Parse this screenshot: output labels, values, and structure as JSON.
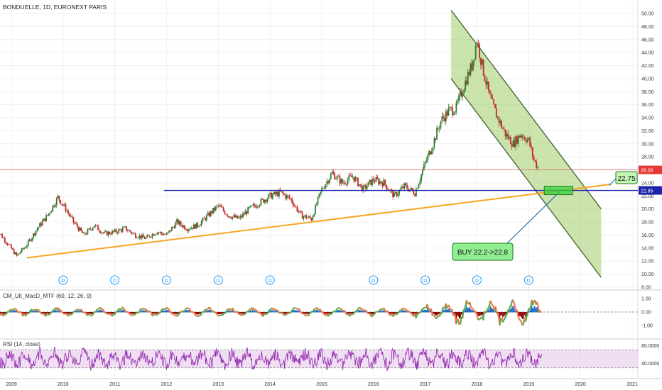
{
  "header": {
    "title": "BONDUELLE, 1D, EURONEXT PARIS"
  },
  "colors": {
    "candle_up": "#2e7d32",
    "candle_down": "#c62828",
    "support_line": "#f5a623",
    "horizontal_line": "#1e22aa",
    "price_line": "#e57373",
    "channel_fill": "#8bc34a",
    "channel_border": "#4a6b3a",
    "macd_up": "#4caf50",
    "macd_down": "#ff7043",
    "rsi_line": "#8e24aa",
    "rsi_band": "#e1bee7"
  },
  "chart_data": [
    {
      "type": "line",
      "title": "BONDUELLE, 1D, EURONEXT PARIS",
      "xlabel": "",
      "ylabel": "",
      "x_ticks": [
        "2009",
        "2010",
        "2011",
        "2012",
        "2013",
        "2014",
        "2015",
        "2016",
        "2017",
        "2018",
        "2019",
        "2020",
        "2021"
      ],
      "y_ticks": [
        "50.00",
        "48.00",
        "46.00",
        "44.00",
        "42.00",
        "40.00",
        "38.00",
        "36.00",
        "34.00",
        "32.00",
        "30.00",
        "28.00",
        "26.00",
        "24.00",
        "22.00",
        "20.00",
        "18.00",
        "16.00",
        "14.00",
        "12.00",
        "10.00",
        "8.00"
      ],
      "ylim": [
        8,
        51
      ],
      "series": [
        {
          "x": [
            2008.7,
            2008.9,
            2009.1,
            2009.3,
            2009.5,
            2009.7,
            2009.9,
            2010.05,
            2010.2,
            2010.4,
            2010.6,
            2010.8,
            2011.0,
            2011.2,
            2011.4,
            2011.6,
            2011.8,
            2012.0,
            2012.2,
            2012.4,
            2012.6,
            2012.8,
            2013.0,
            2013.2,
            2013.4,
            2013.6,
            2013.8,
            2014.0,
            2014.2,
            2014.4,
            2014.6,
            2014.8,
            2015.0,
            2015.2,
            2015.4,
            2015.6,
            2015.8,
            2016.0,
            2016.2,
            2016.4,
            2016.6,
            2016.8,
            2017.0,
            2017.15,
            2017.3,
            2017.45,
            2017.6,
            2017.75,
            2017.9,
            2018.0,
            2018.1,
            2018.25,
            2018.4,
            2018.55,
            2018.7,
            2018.85,
            2019.0,
            2019.1,
            2019.2
          ],
          "values": [
            17.0,
            15.0,
            12.8,
            14.5,
            17.0,
            19.0,
            21.8,
            20.0,
            18.0,
            16.0,
            17.5,
            16.2,
            16.5,
            17.0,
            16.0,
            15.5,
            16.5,
            16.0,
            18.0,
            17.0,
            17.5,
            19.0,
            20.5,
            19.0,
            18.5,
            20.0,
            21.0,
            22.0,
            22.5,
            21.5,
            19.0,
            18.5,
            23.0,
            25.5,
            24.0,
            25.0,
            23.0,
            24.5,
            24.0,
            22.0,
            23.5,
            22.5,
            27.0,
            30.0,
            33.5,
            35.0,
            35.5,
            39.0,
            42.0,
            46.0,
            42.0,
            37.0,
            34.0,
            31.5,
            30.0,
            31.5,
            30.5,
            27.5,
            26.0
          ]
        }
      ],
      "annotations": {
        "last_price": "26.00",
        "horizontal_level": "22.85",
        "target_label": "22.75",
        "buy_label": "BUY 22.2->22.8",
        "dividend_marker": "D",
        "dividend_x": [
          2010.0,
          2011.0,
          2012.0,
          2013.0,
          2014.0,
          2016.0,
          2017.0,
          2018.0,
          2019.0
        ]
      },
      "drawings": {
        "support_line": [
          [
            2009.3,
            12.5
          ],
          [
            2020.6,
            23.8
          ]
        ],
        "horizontal_level_start_x": 2011.95,
        "channel_upper": [
          [
            2017.5,
            50.5
          ],
          [
            2020.4,
            20.0
          ]
        ],
        "channel_lower": [
          [
            2017.5,
            40.0
          ],
          [
            2020.4,
            9.5
          ]
        ],
        "buy_zone": {
          "x": [
            2019.3,
            2019.85
          ],
          "y": [
            22.2,
            23.5
          ]
        }
      }
    },
    {
      "type": "bar",
      "title": "CM_Ult_MacD_MTF (60, 12, 26, 9)",
      "y_ticks": [
        "1.00",
        "0.00",
        "-1.00"
      ],
      "ylim": [
        -1.8,
        1.8
      ]
    },
    {
      "type": "line",
      "title": "RSI (14, close)",
      "y_ticks": [
        "80.0000",
        "40.0000"
      ],
      "ylim": [
        15,
        90
      ],
      "bands": [
        30,
        70
      ]
    }
  ]
}
